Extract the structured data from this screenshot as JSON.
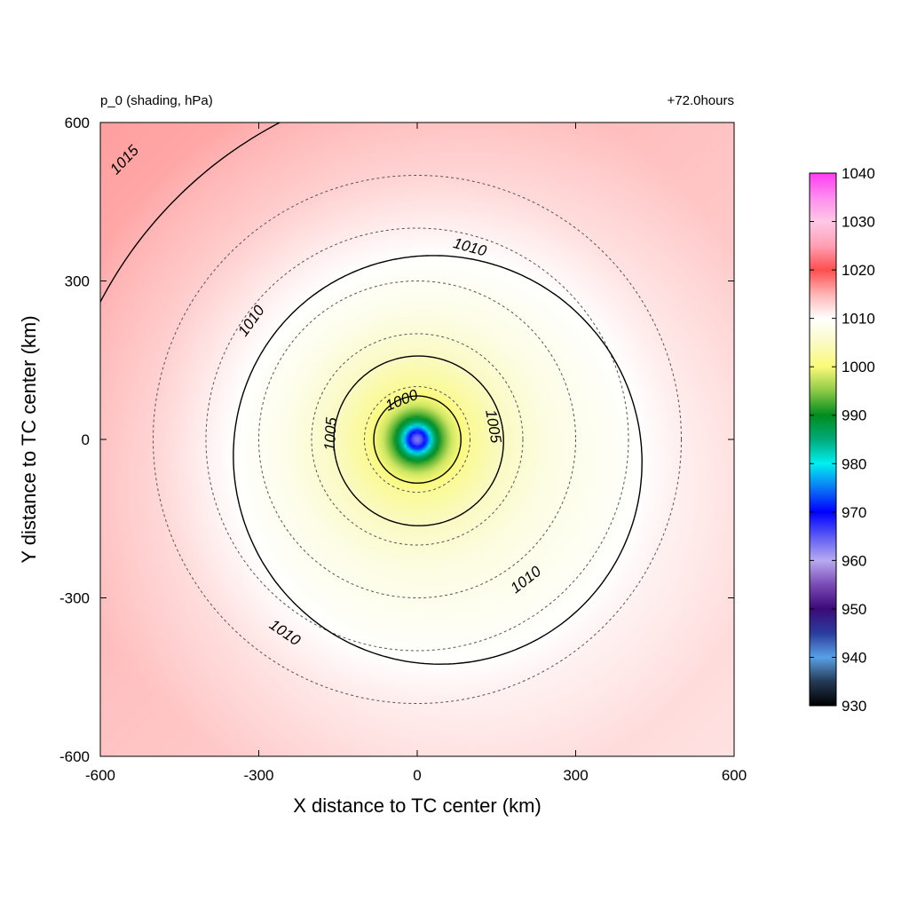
{
  "chart_data": {
    "type": "heatmap",
    "left_title": "p_0 (shading, hPa)",
    "right_title": "+72.0hours",
    "xlabel": "X distance to TC center (km)",
    "ylabel": "Y distance to TC center (km)",
    "xlim": [
      -600,
      600
    ],
    "ylim": [
      -600,
      600
    ],
    "xticks": [
      -600,
      -300,
      0,
      300,
      600
    ],
    "yticks": [
      -600,
      -300,
      0,
      300,
      600
    ],
    "field": {
      "center_pressure": 962,
      "radial_profile": [
        {
          "r": 0,
          "p": 962
        },
        {
          "r": 10,
          "p": 966
        },
        {
          "r": 20,
          "p": 974
        },
        {
          "r": 30,
          "p": 984
        },
        {
          "r": 45,
          "p": 992
        },
        {
          "r": 65,
          "p": 998
        },
        {
          "r": 100,
          "p": 1002
        },
        {
          "r": 160,
          "p": 1005
        },
        {
          "r": 250,
          "p": 1008
        },
        {
          "r": 380,
          "p": 1010
        },
        {
          "r": 500,
          "p": 1012
        },
        {
          "r": 700,
          "p": 1014
        }
      ],
      "gradient_to_northwest_hpa_per_km": 0.004
    },
    "contours": [
      {
        "level": 1000,
        "labels": [
          {
            "text": "1000",
            "x": -30,
            "y": 75
          }
        ]
      },
      {
        "level": 1005,
        "labels": [
          {
            "text": "1005",
            "x": -165,
            "y": 10
          },
          {
            "text": "1005",
            "x": 145,
            "y": 25
          }
        ]
      },
      {
        "level": 1010,
        "labels": [
          {
            "text": "1010",
            "x": 100,
            "y": 365
          },
          {
            "text": "1010",
            "x": -315,
            "y": 225
          },
          {
            "text": "1010",
            "x": 205,
            "y": -265
          },
          {
            "text": "1010",
            "x": -250,
            "y": -365
          }
        ]
      },
      {
        "level": 1015,
        "labels": [
          {
            "text": "1015",
            "x": -555,
            "y": 530
          }
        ]
      }
    ],
    "radius_circles_km": [
      100,
      200,
      300,
      400,
      500
    ],
    "colorbar": {
      "ticks": [
        930,
        940,
        950,
        960,
        970,
        980,
        990,
        1000,
        1010,
        1020,
        1030,
        1040
      ],
      "range": [
        930,
        1040
      ],
      "stops": [
        {
          "value": 930,
          "color": "#000000"
        },
        {
          "value": 935,
          "color": "#243a55"
        },
        {
          "value": 940,
          "color": "#5aa0e6"
        },
        {
          "value": 945,
          "color": "#2a3c9c"
        },
        {
          "value": 950,
          "color": "#3c0a78"
        },
        {
          "value": 955,
          "color": "#7a4ab4"
        },
        {
          "value": 960,
          "color": "#b8aaf0"
        },
        {
          "value": 965,
          "color": "#5a5af5"
        },
        {
          "value": 970,
          "color": "#0000ff"
        },
        {
          "value": 975,
          "color": "#0a78f5"
        },
        {
          "value": 980,
          "color": "#00f0f0"
        },
        {
          "value": 985,
          "color": "#00aa7a"
        },
        {
          "value": 990,
          "color": "#008c1e"
        },
        {
          "value": 995,
          "color": "#8cc846"
        },
        {
          "value": 1000,
          "color": "#fafa78"
        },
        {
          "value": 1005,
          "color": "#fafac4"
        },
        {
          "value": 1010,
          "color": "#ffffff"
        },
        {
          "value": 1015,
          "color": "#ffb4b4"
        },
        {
          "value": 1020,
          "color": "#ff4e4e"
        },
        {
          "value": 1025,
          "color": "#ffa0b4"
        },
        {
          "value": 1030,
          "color": "#ffc8e6"
        },
        {
          "value": 1035,
          "color": "#ff8cf0"
        },
        {
          "value": 1040,
          "color": "#ff3cf0"
        }
      ]
    },
    "colors": {
      "contour": "#000000",
      "circle": "#555555"
    }
  }
}
